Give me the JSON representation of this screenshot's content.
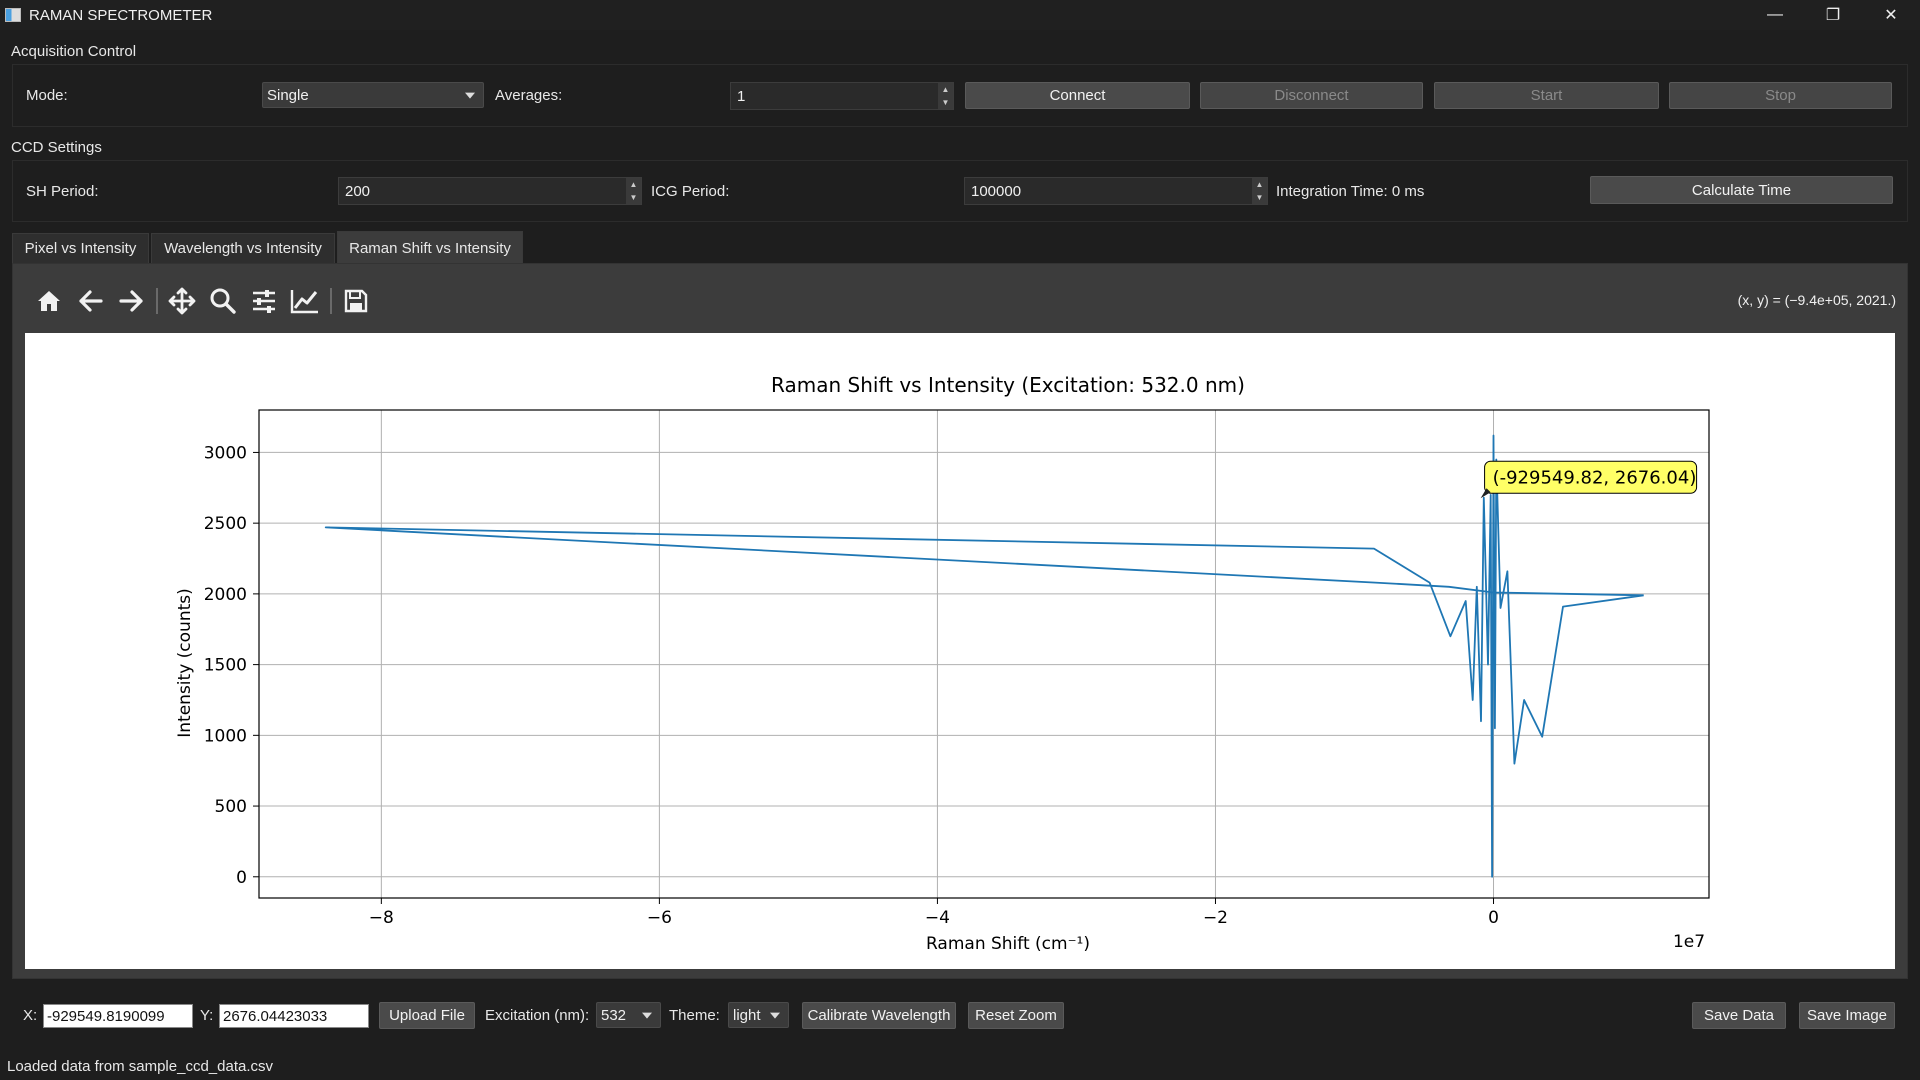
{
  "window": {
    "title": "RAMAN SPECTROMETER",
    "minimize": "—",
    "restore": "❐",
    "close": "✕"
  },
  "acquisition": {
    "section_title": "Acquisition Control",
    "mode_label": "Mode:",
    "mode_value": "Single",
    "averages_label": "Averages:",
    "averages_value": "1",
    "connect": "Connect",
    "disconnect": "Disconnect",
    "start": "Start",
    "stop": "Stop"
  },
  "ccd": {
    "section_title": "CCD Settings",
    "sh_label": "SH Period:",
    "sh_value": "200",
    "icg_label": "ICG Period:",
    "icg_value": "100000",
    "integration_text": "Integration Time: 0 ms",
    "calculate": "Calculate Time"
  },
  "tabs": [
    {
      "label": "Pixel vs Intensity"
    },
    {
      "label": "Wavelength vs Intensity"
    },
    {
      "label": "Raman Shift vs Intensity",
      "active": true
    }
  ],
  "toolbar": {
    "icons": [
      "home-icon",
      "back-icon",
      "forward-icon",
      "pan-icon",
      "zoom-icon",
      "configure-icon",
      "edit-axis-icon",
      "save-icon"
    ],
    "coords": "(x, y) = (−9.4e+05, 2021.)"
  },
  "chart_data": {
    "type": "line",
    "title": "Raman Shift vs Intensity (Excitation: 532.0 nm)",
    "xlabel": "Raman Shift (cm⁻¹)",
    "ylabel": "Intensity (counts)",
    "x_offset_label": "1e7",
    "xlim": [
      -8.88,
      1.55
    ],
    "ylim": [
      -150,
      3300
    ],
    "xticks": [
      -8,
      -6,
      -4,
      -2,
      0
    ],
    "xtick_labels": [
      "−8",
      "−6",
      "−4",
      "−2",
      "0"
    ],
    "yticks": [
      0,
      500,
      1000,
      1500,
      2000,
      2500,
      3000
    ],
    "ytick_labels": [
      "0",
      "500",
      "1000",
      "1500",
      "2000",
      "2500",
      "3000"
    ],
    "grid": true,
    "line_color": "#1f77b4",
    "series": [
      {
        "x": [
          1.08,
          0.5,
          0.35,
          0.22,
          0.15,
          0.1,
          0.05,
          0.02,
          0.01,
          0.0,
          -0.01,
          -0.02,
          -0.04,
          -0.07,
          -0.09,
          -0.12,
          -0.15,
          -0.2,
          -0.31,
          -0.46,
          -0.86,
          -8.4,
          -0.85,
          -0.32,
          0.0,
          1.08
        ],
        "y": [
          1990,
          1910,
          990,
          1250,
          800,
          2160,
          1900,
          2950,
          1050,
          3120,
          0,
          2700,
          1500,
          2680,
          1100,
          2050,
          1250,
          1950,
          1700,
          2080,
          2320,
          2470,
          2080,
          2050,
          2010,
          1990
        ]
      }
    ],
    "annotation": {
      "text": "(-929549.82, 2676.04)",
      "x": -0.0929549,
      "y": 2676.04,
      "color": "#ffff66"
    }
  },
  "bottom": {
    "x_label": "X:",
    "x_value": "-929549.8190099",
    "y_label": "Y:",
    "y_value": "2676.04423033",
    "upload": "Upload File",
    "excitation_label": "Excitation (nm):",
    "excitation_value": "532",
    "theme_label": "Theme:",
    "theme_value": "light",
    "calibrate": "Calibrate Wavelength",
    "reset_zoom": "Reset Zoom",
    "save_data": "Save Data",
    "save_image": "Save Image"
  },
  "status": "Loaded data from sample_ccd_data.csv"
}
